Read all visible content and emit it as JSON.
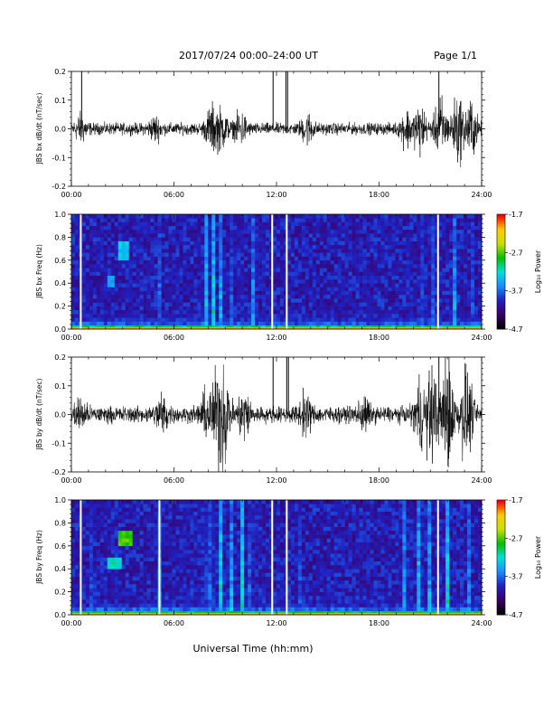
{
  "header": {
    "date_range": "2017/07/24  00:00–24:00 UT",
    "page": "Page 1/1"
  },
  "x_axis": {
    "label": "Universal Time (hh:mm)",
    "ticks": [
      "00:00",
      "06:00",
      "12:00",
      "18:00",
      "24:00"
    ],
    "range_hours": [
      0,
      24
    ]
  },
  "colorbar": {
    "label": "Log₁₀ Power",
    "ticks": [
      "-1.7",
      "-2.7",
      "-3.7",
      "-4.7"
    ],
    "range": [
      -4.7,
      -1.7
    ],
    "colors": [
      "#000000",
      "#3a006a",
      "#2020c0",
      "#1a8cff",
      "#00e0e0",
      "#00c000",
      "#c8e000",
      "#ffcc00",
      "#ff0000"
    ]
  },
  "chart_data": [
    {
      "type": "line",
      "ylabel": "JBS bx dB/dt (nT/sec)",
      "ylim": [
        -0.2,
        0.2
      ],
      "yticks": [
        "0.2",
        "0.1",
        "0.0",
        "-0.1",
        "-0.2"
      ],
      "xlim": [
        0,
        24
      ],
      "baseline": 0.0,
      "background_noise": 0.018,
      "activity_bursts": [
        {
          "t": 0.55,
          "amp": 0.035
        },
        {
          "t": 4.9,
          "amp": 0.03
        },
        {
          "t": 8.2,
          "amp": 0.06
        },
        {
          "t": 8.8,
          "amp": 0.05
        },
        {
          "t": 9.9,
          "amp": 0.045
        },
        {
          "t": 13.8,
          "amp": 0.04
        },
        {
          "t": 19.6,
          "amp": 0.05
        },
        {
          "t": 20.4,
          "amp": 0.07
        },
        {
          "t": 21.6,
          "amp": 0.09
        },
        {
          "t": 22.6,
          "amp": 0.1
        },
        {
          "t": 23.4,
          "amp": 0.08
        }
      ],
      "spikes": [
        {
          "t": 0.6,
          "value": 0.2
        },
        {
          "t": 11.8,
          "value": 0.2
        },
        {
          "t": 12.55,
          "value": 0.2
        },
        {
          "t": 12.65,
          "value": 0.2
        },
        {
          "t": 21.5,
          "value": 0.2
        }
      ]
    },
    {
      "type": "heatmap",
      "ylabel": "JBS bx Freq (Hz)",
      "ylim": [
        0.0,
        1.0
      ],
      "yticks": [
        "1.0",
        "0.8",
        "0.6",
        "0.4",
        "0.2",
        "0.0"
      ],
      "xlim": [
        0,
        24
      ],
      "data_gaps_hours": [
        0.55,
        11.75,
        12.6,
        21.45
      ],
      "bright_columns": [
        {
          "t": 5.2,
          "level": 0.45
        },
        {
          "t": 7.9,
          "level": 0.55
        },
        {
          "t": 8.3,
          "level": 0.6
        },
        {
          "t": 8.8,
          "level": 0.65
        },
        {
          "t": 9.3,
          "level": 0.5
        },
        {
          "t": 9.9,
          "level": 0.5
        },
        {
          "t": 10.6,
          "level": 0.5
        },
        {
          "t": 19.8,
          "level": 0.45
        },
        {
          "t": 20.6,
          "level": 0.5
        },
        {
          "t": 21.2,
          "level": 0.45
        },
        {
          "t": 22.4,
          "level": 0.5
        },
        {
          "t": 23.4,
          "level": 0.5
        }
      ],
      "patches": [
        {
          "t0": 2.8,
          "t1": 3.4,
          "f0": 0.6,
          "f1": 0.78,
          "level": 0.5
        },
        {
          "t0": 2.2,
          "t1": 2.6,
          "f0": 0.38,
          "f1": 0.45,
          "level": 0.45
        }
      ],
      "low_freq_band_level": 0.75
    },
    {
      "type": "line",
      "ylabel": "JBS by dB/dt (nT/sec)",
      "ylim": [
        -0.2,
        0.2
      ],
      "yticks": [
        "0.2",
        "0.1",
        "0.0",
        "-0.1",
        "-0.2"
      ],
      "xlim": [
        0,
        24
      ],
      "baseline": 0.0,
      "background_noise": 0.025,
      "activity_bursts": [
        {
          "t": 0.5,
          "amp": 0.04
        },
        {
          "t": 5.3,
          "amp": 0.05
        },
        {
          "t": 7.9,
          "amp": 0.06
        },
        {
          "t": 8.6,
          "amp": 0.13
        },
        {
          "t": 9.0,
          "amp": 0.09
        },
        {
          "t": 10.1,
          "amp": 0.07
        },
        {
          "t": 13.7,
          "amp": 0.05
        },
        {
          "t": 17.1,
          "amp": 0.04
        },
        {
          "t": 20.4,
          "amp": 0.09
        },
        {
          "t": 21.1,
          "amp": 0.13
        },
        {
          "t": 22.0,
          "amp": 0.18
        },
        {
          "t": 23.1,
          "amp": 0.14
        }
      ],
      "spikes": [
        {
          "t": 11.8,
          "value": 0.2
        },
        {
          "t": 12.6,
          "value": 0.2
        },
        {
          "t": 12.7,
          "value": 0.2
        },
        {
          "t": 21.5,
          "value": 0.2
        }
      ]
    },
    {
      "type": "heatmap",
      "ylabel": "JBS by Freq (Hz)",
      "ylim": [
        0.0,
        1.0
      ],
      "yticks": [
        "1.0",
        "0.8",
        "0.6",
        "0.4",
        "0.2",
        "0.0"
      ],
      "xlim": [
        0,
        24
      ],
      "data_gaps_hours": [
        0.55,
        5.15,
        11.75,
        12.6,
        21.45
      ],
      "bright_columns": [
        {
          "t": 1.2,
          "level": 0.4
        },
        {
          "t": 5.2,
          "level": 0.55
        },
        {
          "t": 7.8,
          "level": 0.6
        },
        {
          "t": 8.2,
          "level": 0.7
        },
        {
          "t": 8.8,
          "level": 0.75
        },
        {
          "t": 9.4,
          "level": 0.55
        },
        {
          "t": 10.0,
          "level": 0.6
        },
        {
          "t": 10.5,
          "level": 0.55
        },
        {
          "t": 13.4,
          "level": 0.4
        },
        {
          "t": 19.5,
          "level": 0.5
        },
        {
          "t": 20.3,
          "level": 0.55
        },
        {
          "t": 21.0,
          "level": 0.6
        },
        {
          "t": 22.0,
          "level": 0.6
        },
        {
          "t": 23.2,
          "level": 0.55
        }
      ],
      "patches": [
        {
          "t0": 2.8,
          "t1": 3.5,
          "f0": 0.6,
          "f1": 0.72,
          "level": 0.72
        },
        {
          "t0": 2.2,
          "t1": 2.9,
          "f0": 0.4,
          "f1": 0.5,
          "level": 0.55
        }
      ],
      "low_freq_band_level": 0.8
    }
  ]
}
